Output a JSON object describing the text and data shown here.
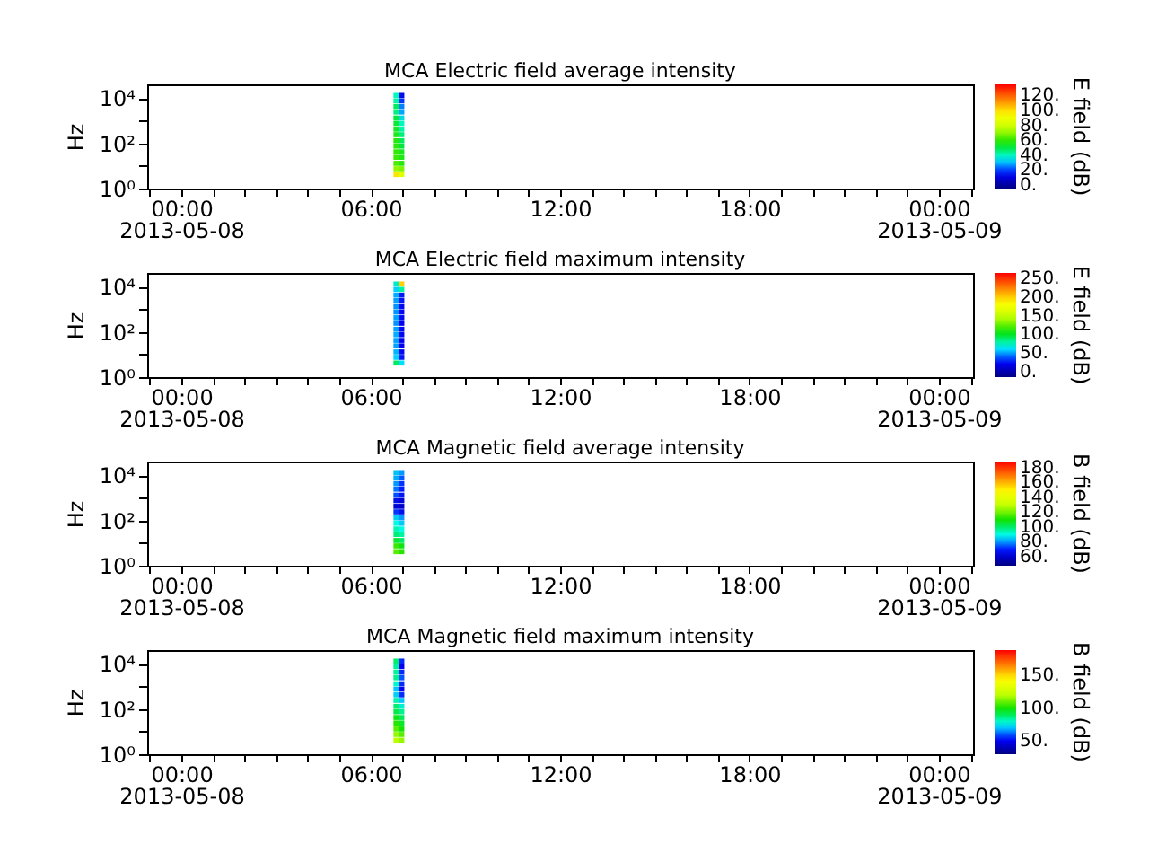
{
  "chart_data": [
    {
      "type": "scatter",
      "title": "MCA  Electric field average intensity",
      "ylabel": "Hz",
      "clabel": "E field (dB)",
      "log": "y",
      "marker": "square",
      "x": [
        "2013-05-08T06:48",
        "2013-05-08T06:59",
        "2013-05-08T06:48",
        "2013-05-08T06:59",
        "2013-05-08T06:48",
        "2013-05-08T06:59",
        "2013-05-08T06:48",
        "2013-05-08T06:59",
        "2013-05-08T06:48",
        "2013-05-08T06:59",
        "2013-05-08T06:48",
        "2013-05-08T06:59",
        "2013-05-08T06:48",
        "2013-05-08T06:59",
        "2013-05-08T06:48",
        "2013-05-08T06:59",
        "2013-05-08T06:48",
        "2013-05-08T06:59",
        "2013-05-08T06:48",
        "2013-05-08T06:59",
        "2013-05-08T06:48",
        "2013-05-08T06:59",
        "2013-05-08T06:48",
        "2013-05-08T06:59",
        "2013-05-08T06:48",
        "2013-05-08T06:59",
        "2013-05-08T06:48",
        "2013-05-08T06:59",
        "2013-05-08T06:48",
        "2013-05-08T06:59"
      ],
      "values": [
        13000,
        13000,
        7500,
        7500,
        4200,
        4200,
        2400,
        2400,
        1300,
        1300,
        750,
        750,
        420,
        420,
        240,
        240,
        130,
        130,
        75,
        75,
        42,
        42,
        24,
        24,
        13,
        13,
        7.5,
        7.5,
        4.2,
        4.2
      ],
      "cvalues": [
        40,
        12,
        42,
        18,
        48,
        25,
        45,
        28,
        50,
        35,
        52,
        40,
        54,
        42,
        56,
        45,
        58,
        48,
        59,
        50,
        60,
        55,
        61,
        56,
        63,
        58,
        71,
        68,
        98,
        85
      ],
      "clim": [
        -5,
        135
      ],
      "cticks": [
        {
          "value": 0,
          "label": "0."
        },
        {
          "value": 20,
          "label": "20."
        },
        {
          "value": 40,
          "label": "40."
        },
        {
          "value": 60,
          "label": "60."
        },
        {
          "value": 80,
          "label": "80."
        },
        {
          "value": 100,
          "label": "100."
        },
        {
          "value": 120,
          "label": "120."
        }
      ],
      "xlim": [
        "2013-05-07T22:55",
        "2013-05-09T01:05"
      ],
      "xticks": [
        {
          "value": "2013-05-07T23:00",
          "label": null
        },
        {
          "value": "2013-05-08T00:00",
          "label": "00:00\n2013-05-08"
        },
        {
          "value": "2013-05-08T01:00",
          "label": null
        },
        {
          "value": "2013-05-08T02:00",
          "label": null
        },
        {
          "value": "2013-05-08T03:00",
          "label": null
        },
        {
          "value": "2013-05-08T04:00",
          "label": null
        },
        {
          "value": "2013-05-08T05:00",
          "label": null
        },
        {
          "value": "2013-05-08T06:00",
          "label": "06:00"
        },
        {
          "value": "2013-05-08T07:00",
          "label": null
        },
        {
          "value": "2013-05-08T08:00",
          "label": null
        },
        {
          "value": "2013-05-08T09:00",
          "label": null
        },
        {
          "value": "2013-05-08T10:00",
          "label": null
        },
        {
          "value": "2013-05-08T11:00",
          "label": null
        },
        {
          "value": "2013-05-08T12:00",
          "label": "12:00"
        },
        {
          "value": "2013-05-08T13:00",
          "label": null
        },
        {
          "value": "2013-05-08T14:00",
          "label": null
        },
        {
          "value": "2013-05-08T15:00",
          "label": null
        },
        {
          "value": "2013-05-08T16:00",
          "label": null
        },
        {
          "value": "2013-05-08T17:00",
          "label": null
        },
        {
          "value": "2013-05-08T18:00",
          "label": "18:00"
        },
        {
          "value": "2013-05-08T19:00",
          "label": null
        },
        {
          "value": "2013-05-08T20:00",
          "label": null
        },
        {
          "value": "2013-05-08T21:00",
          "label": null
        },
        {
          "value": "2013-05-08T22:00",
          "label": null
        },
        {
          "value": "2013-05-08T23:00",
          "label": null
        },
        {
          "value": "2013-05-09T00:00",
          "label": "00:00\n2013-05-09"
        },
        {
          "value": "2013-05-09T01:00",
          "label": null
        }
      ],
      "ylim": [
        1,
        40000
      ],
      "yticks": [
        {
          "value": 1,
          "label": "10⁰"
        },
        {
          "value": 10,
          "label": null
        },
        {
          "value": 100,
          "label": "10²"
        },
        {
          "value": 1000,
          "label": null
        },
        {
          "value": 10000,
          "label": "10⁴"
        }
      ]
    },
    {
      "type": "scatter",
      "title": "MCA  Electric field maximum intensity",
      "ylabel": "Hz",
      "clabel": "E field (dB)",
      "log": "y",
      "marker": "square",
      "x": [
        "2013-05-08T06:48",
        "2013-05-08T06:59",
        "2013-05-08T06:48",
        "2013-05-08T06:59",
        "2013-05-08T06:48",
        "2013-05-08T06:59",
        "2013-05-08T06:48",
        "2013-05-08T06:59",
        "2013-05-08T06:48",
        "2013-05-08T06:59",
        "2013-05-08T06:48",
        "2013-05-08T06:59",
        "2013-05-08T06:48",
        "2013-05-08T06:59",
        "2013-05-08T06:48",
        "2013-05-08T06:59",
        "2013-05-08T06:48",
        "2013-05-08T06:59",
        "2013-05-08T06:48",
        "2013-05-08T06:59",
        "2013-05-08T06:48",
        "2013-05-08T06:59",
        "2013-05-08T06:48",
        "2013-05-08T06:59",
        "2013-05-08T06:48",
        "2013-05-08T06:59",
        "2013-05-08T06:48",
        "2013-05-08T06:59",
        "2013-05-08T06:48",
        "2013-05-08T06:59"
      ],
      "values": [
        13000,
        13000,
        7500,
        7500,
        4200,
        4200,
        2400,
        2400,
        1300,
        1300,
        750,
        750,
        420,
        420,
        240,
        240,
        130,
        130,
        75,
        75,
        42,
        42,
        24,
        24,
        13,
        13,
        7.5,
        7.5,
        4.2,
        4.2
      ],
      "cvalues": [
        72,
        200,
        58,
        80,
        52,
        25,
        50,
        25,
        48,
        22,
        48,
        22,
        50,
        22,
        48,
        20,
        50,
        22,
        52,
        22,
        50,
        20,
        50,
        20,
        53,
        22,
        58,
        25,
        90,
        60
      ],
      "clim": [
        -15,
        265
      ],
      "cticks": [
        {
          "value": 0,
          "label": "0."
        },
        {
          "value": 50,
          "label": "50."
        },
        {
          "value": 100,
          "label": "100."
        },
        {
          "value": 150,
          "label": "150."
        },
        {
          "value": 200,
          "label": "200."
        },
        {
          "value": 250,
          "label": "250."
        }
      ],
      "xlim": [
        "2013-05-07T22:55",
        "2013-05-09T01:05"
      ],
      "xticks": [
        {
          "value": "2013-05-07T23:00",
          "label": null
        },
        {
          "value": "2013-05-08T00:00",
          "label": "00:00\n2013-05-08"
        },
        {
          "value": "2013-05-08T01:00",
          "label": null
        },
        {
          "value": "2013-05-08T02:00",
          "label": null
        },
        {
          "value": "2013-05-08T03:00",
          "label": null
        },
        {
          "value": "2013-05-08T04:00",
          "label": null
        },
        {
          "value": "2013-05-08T05:00",
          "label": null
        },
        {
          "value": "2013-05-08T06:00",
          "label": "06:00"
        },
        {
          "value": "2013-05-08T07:00",
          "label": null
        },
        {
          "value": "2013-05-08T08:00",
          "label": null
        },
        {
          "value": "2013-05-08T09:00",
          "label": null
        },
        {
          "value": "2013-05-08T10:00",
          "label": null
        },
        {
          "value": "2013-05-08T11:00",
          "label": null
        },
        {
          "value": "2013-05-08T12:00",
          "label": "12:00"
        },
        {
          "value": "2013-05-08T13:00",
          "label": null
        },
        {
          "value": "2013-05-08T14:00",
          "label": null
        },
        {
          "value": "2013-05-08T15:00",
          "label": null
        },
        {
          "value": "2013-05-08T16:00",
          "label": null
        },
        {
          "value": "2013-05-08T17:00",
          "label": null
        },
        {
          "value": "2013-05-08T18:00",
          "label": "18:00"
        },
        {
          "value": "2013-05-08T19:00",
          "label": null
        },
        {
          "value": "2013-05-08T20:00",
          "label": null
        },
        {
          "value": "2013-05-08T21:00",
          "label": null
        },
        {
          "value": "2013-05-08T22:00",
          "label": null
        },
        {
          "value": "2013-05-08T23:00",
          "label": null
        },
        {
          "value": "2013-05-09T00:00",
          "label": "00:00\n2013-05-09"
        },
        {
          "value": "2013-05-09T01:00",
          "label": null
        }
      ],
      "ylim": [
        1,
        40000
      ],
      "yticks": [
        {
          "value": 1,
          "label": "10⁰"
        },
        {
          "value": 10,
          "label": null
        },
        {
          "value": 100,
          "label": "10²"
        },
        {
          "value": 1000,
          "label": null
        },
        {
          "value": 10000,
          "label": "10⁴"
        }
      ]
    },
    {
      "type": "scatter",
      "title": "MCA  Magnetic field average intensity",
      "ylabel": "Hz",
      "clabel": "B field (dB)",
      "log": "y",
      "marker": "square",
      "x": [
        "2013-05-08T06:48",
        "2013-05-08T06:59",
        "2013-05-08T06:48",
        "2013-05-08T06:59",
        "2013-05-08T06:48",
        "2013-05-08T06:59",
        "2013-05-08T06:48",
        "2013-05-08T06:59",
        "2013-05-08T06:48",
        "2013-05-08T06:59",
        "2013-05-08T06:48",
        "2013-05-08T06:59",
        "2013-05-08T06:48",
        "2013-05-08T06:59",
        "2013-05-08T06:48",
        "2013-05-08T06:59",
        "2013-05-08T06:48",
        "2013-05-08T06:59",
        "2013-05-08T06:48",
        "2013-05-08T06:59",
        "2013-05-08T06:48",
        "2013-05-08T06:59",
        "2013-05-08T06:48",
        "2013-05-08T06:59",
        "2013-05-08T06:48",
        "2013-05-08T06:59",
        "2013-05-08T06:48",
        "2013-05-08T06:59",
        "2013-05-08T06:48",
        "2013-05-08T06:59"
      ],
      "values": [
        13000,
        13000,
        7500,
        7500,
        4200,
        4200,
        2400,
        2400,
        1300,
        1300,
        750,
        750,
        420,
        420,
        240,
        240,
        130,
        130,
        75,
        75,
        42,
        42,
        24,
        24,
        13,
        13,
        7.5,
        7.5,
        4.2,
        4.2
      ],
      "cvalues": [
        84,
        80,
        82,
        75,
        80,
        72,
        77,
        70,
        74,
        68,
        65,
        62,
        62,
        60,
        72,
        66,
        85,
        80,
        90,
        85,
        94,
        90,
        99,
        95,
        106,
        100,
        114,
        108,
        117,
        112
      ],
      "clim": [
        48,
        188
      ],
      "cticks": [
        {
          "value": 60,
          "label": "60."
        },
        {
          "value": 80,
          "label": "80."
        },
        {
          "value": 100,
          "label": "100."
        },
        {
          "value": 120,
          "label": "120."
        },
        {
          "value": 140,
          "label": "140."
        },
        {
          "value": 160,
          "label": "160."
        },
        {
          "value": 180,
          "label": "180."
        }
      ],
      "xlim": [
        "2013-05-07T22:55",
        "2013-05-09T01:05"
      ],
      "xticks": [
        {
          "value": "2013-05-07T23:00",
          "label": null
        },
        {
          "value": "2013-05-08T00:00",
          "label": "00:00\n2013-05-08"
        },
        {
          "value": "2013-05-08T01:00",
          "label": null
        },
        {
          "value": "2013-05-08T02:00",
          "label": null
        },
        {
          "value": "2013-05-08T03:00",
          "label": null
        },
        {
          "value": "2013-05-08T04:00",
          "label": null
        },
        {
          "value": "2013-05-08T05:00",
          "label": null
        },
        {
          "value": "2013-05-08T06:00",
          "label": "06:00"
        },
        {
          "value": "2013-05-08T07:00",
          "label": null
        },
        {
          "value": "2013-05-08T08:00",
          "label": null
        },
        {
          "value": "2013-05-08T09:00",
          "label": null
        },
        {
          "value": "2013-05-08T10:00",
          "label": null
        },
        {
          "value": "2013-05-08T11:00",
          "label": null
        },
        {
          "value": "2013-05-08T12:00",
          "label": "12:00"
        },
        {
          "value": "2013-05-08T13:00",
          "label": null
        },
        {
          "value": "2013-05-08T14:00",
          "label": null
        },
        {
          "value": "2013-05-08T15:00",
          "label": null
        },
        {
          "value": "2013-05-08T16:00",
          "label": null
        },
        {
          "value": "2013-05-08T17:00",
          "label": null
        },
        {
          "value": "2013-05-08T18:00",
          "label": "18:00"
        },
        {
          "value": "2013-05-08T19:00",
          "label": null
        },
        {
          "value": "2013-05-08T20:00",
          "label": null
        },
        {
          "value": "2013-05-08T21:00",
          "label": null
        },
        {
          "value": "2013-05-08T22:00",
          "label": null
        },
        {
          "value": "2013-05-08T23:00",
          "label": null
        },
        {
          "value": "2013-05-09T00:00",
          "label": "00:00\n2013-05-09"
        },
        {
          "value": "2013-05-09T01:00",
          "label": null
        }
      ],
      "ylim": [
        1,
        40000
      ],
      "yticks": [
        {
          "value": 1,
          "label": "10⁰"
        },
        {
          "value": 10,
          "label": null
        },
        {
          "value": 100,
          "label": "10²"
        },
        {
          "value": 1000,
          "label": null
        },
        {
          "value": 10000,
          "label": "10⁴"
        }
      ]
    },
    {
      "type": "scatter",
      "title": "MCA  Magnetic field maximum intensity",
      "ylabel": "Hz",
      "clabel": "B field (dB)",
      "log": "y",
      "marker": "square",
      "x": [
        "2013-05-08T06:48",
        "2013-05-08T06:59",
        "2013-05-08T06:48",
        "2013-05-08T06:59",
        "2013-05-08T06:48",
        "2013-05-08T06:59",
        "2013-05-08T06:48",
        "2013-05-08T06:59",
        "2013-05-08T06:48",
        "2013-05-08T06:59",
        "2013-05-08T06:48",
        "2013-05-08T06:59",
        "2013-05-08T06:48",
        "2013-05-08T06:59",
        "2013-05-08T06:48",
        "2013-05-08T06:59",
        "2013-05-08T06:48",
        "2013-05-08T06:59",
        "2013-05-08T06:48",
        "2013-05-08T06:59",
        "2013-05-08T06:48",
        "2013-05-08T06:59",
        "2013-05-08T06:48",
        "2013-05-08T06:59",
        "2013-05-08T06:48",
        "2013-05-08T06:59",
        "2013-05-08T06:48",
        "2013-05-08T06:59",
        "2013-05-08T06:48",
        "2013-05-08T06:59"
      ],
      "values": [
        13000,
        13000,
        7500,
        7500,
        4200,
        4200,
        2400,
        2400,
        1300,
        1300,
        750,
        750,
        420,
        420,
        240,
        240,
        130,
        130,
        75,
        75,
        42,
        42,
        24,
        24,
        13,
        13,
        7.5,
        7.5,
        4.2,
        4.2
      ],
      "cvalues": [
        88,
        55,
        84,
        50,
        84,
        55,
        85,
        60,
        80,
        55,
        70,
        50,
        72,
        55,
        83,
        70,
        88,
        78,
        92,
        85,
        98,
        90,
        102,
        95,
        108,
        100,
        115,
        108,
        120,
        115
      ],
      "clim": [
        30,
        188
      ],
      "cticks": [
        {
          "value": 50,
          "label": "50."
        },
        {
          "value": 100,
          "label": "100."
        },
        {
          "value": 150,
          "label": "150."
        }
      ],
      "xlim": [
        "2013-05-07T22:55",
        "2013-05-09T01:05"
      ],
      "xticks": [
        {
          "value": "2013-05-07T23:00",
          "label": null
        },
        {
          "value": "2013-05-08T00:00",
          "label": "00:00\n2013-05-08"
        },
        {
          "value": "2013-05-08T01:00",
          "label": null
        },
        {
          "value": "2013-05-08T02:00",
          "label": null
        },
        {
          "value": "2013-05-08T03:00",
          "label": null
        },
        {
          "value": "2013-05-08T04:00",
          "label": null
        },
        {
          "value": "2013-05-08T05:00",
          "label": null
        },
        {
          "value": "2013-05-08T06:00",
          "label": "06:00"
        },
        {
          "value": "2013-05-08T07:00",
          "label": null
        },
        {
          "value": "2013-05-08T08:00",
          "label": null
        },
        {
          "value": "2013-05-08T09:00",
          "label": null
        },
        {
          "value": "2013-05-08T10:00",
          "label": null
        },
        {
          "value": "2013-05-08T11:00",
          "label": null
        },
        {
          "value": "2013-05-08T12:00",
          "label": "12:00"
        },
        {
          "value": "2013-05-08T13:00",
          "label": null
        },
        {
          "value": "2013-05-08T14:00",
          "label": null
        },
        {
          "value": "2013-05-08T15:00",
          "label": null
        },
        {
          "value": "2013-05-08T16:00",
          "label": null
        },
        {
          "value": "2013-05-08T17:00",
          "label": null
        },
        {
          "value": "2013-05-08T18:00",
          "label": "18:00"
        },
        {
          "value": "2013-05-08T19:00",
          "label": null
        },
        {
          "value": "2013-05-08T20:00",
          "label": null
        },
        {
          "value": "2013-05-08T21:00",
          "label": null
        },
        {
          "value": "2013-05-08T22:00",
          "label": null
        },
        {
          "value": "2013-05-08T23:00",
          "label": null
        },
        {
          "value": "2013-05-09T00:00",
          "label": "00:00\n2013-05-09"
        },
        {
          "value": "2013-05-09T01:00",
          "label": null
        }
      ],
      "ylim": [
        1,
        40000
      ],
      "yticks": [
        {
          "value": 1,
          "label": "10⁰"
        },
        {
          "value": 10,
          "label": null
        },
        {
          "value": 100,
          "label": "10²"
        },
        {
          "value": 1000,
          "label": null
        },
        {
          "value": 10000,
          "label": "10⁴"
        }
      ]
    }
  ]
}
